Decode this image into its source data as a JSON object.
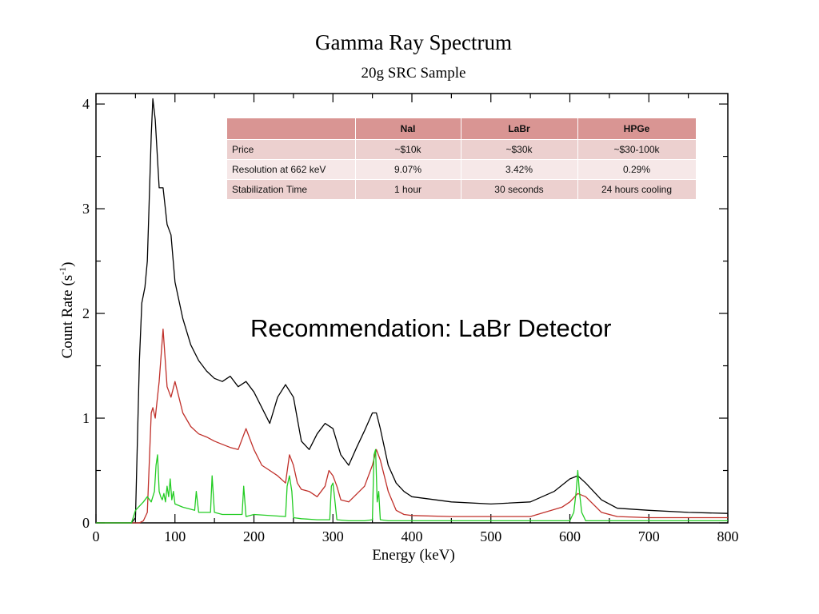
{
  "chart_data": {
    "type": "line",
    "title": "Gamma Ray Spectrum",
    "subtitle": "20g SRC Sample",
    "xlabel": "Energy (keV)",
    "ylabel_main": "Count Rate (s",
    "ylabel_sup": "-1",
    "ylabel_close": ")",
    "xlim": [
      0,
      800
    ],
    "ylim": [
      0,
      4.1
    ],
    "xticks": [
      0,
      100,
      200,
      300,
      400,
      500,
      600,
      700,
      800
    ],
    "xtick_labels": [
      "0",
      "100",
      "200",
      "300",
      "400",
      "500",
      "600",
      "700",
      "800"
    ],
    "yticks": [
      0,
      1,
      2,
      3,
      4
    ],
    "ytick_labels": [
      "0",
      "1",
      "2",
      "3",
      "4"
    ],
    "grid": false,
    "series": [
      {
        "color": "#000000",
        "x": [
          0,
          45,
          50,
          55,
          58,
          62,
          65,
          70,
          72,
          75,
          80,
          85,
          90,
          95,
          100,
          110,
          120,
          130,
          140,
          150,
          160,
          170,
          180,
          190,
          200,
          210,
          220,
          230,
          240,
          250,
          260,
          270,
          280,
          290,
          300,
          310,
          320,
          330,
          340,
          350,
          355,
          360,
          370,
          380,
          390,
          400,
          450,
          500,
          550,
          580,
          600,
          610,
          620,
          640,
          660,
          700,
          750,
          800
        ],
        "y": [
          0,
          0,
          0.05,
          1.55,
          2.1,
          2.25,
          2.5,
          3.7,
          4.05,
          3.85,
          3.2,
          3.2,
          2.85,
          2.75,
          2.3,
          1.95,
          1.7,
          1.55,
          1.45,
          1.38,
          1.35,
          1.4,
          1.3,
          1.35,
          1.25,
          1.1,
          0.95,
          1.2,
          1.32,
          1.2,
          0.78,
          0.7,
          0.85,
          0.95,
          0.9,
          0.65,
          0.55,
          0.72,
          0.88,
          1.05,
          1.05,
          0.9,
          0.55,
          0.38,
          0.3,
          0.25,
          0.2,
          0.18,
          0.2,
          0.3,
          0.42,
          0.45,
          0.38,
          0.22,
          0.14,
          0.12,
          0.1,
          0.09
        ]
      },
      {
        "color": "#c0302a",
        "x": [
          0,
          45,
          50,
          55,
          60,
          65,
          70,
          72,
          75,
          80,
          85,
          90,
          95,
          100,
          110,
          120,
          130,
          140,
          150,
          160,
          170,
          180,
          190,
          200,
          210,
          220,
          230,
          240,
          245,
          250,
          255,
          260,
          270,
          280,
          290,
          295,
          300,
          305,
          310,
          320,
          340,
          350,
          355,
          360,
          370,
          380,
          390,
          400,
          450,
          500,
          550,
          590,
          600,
          610,
          620,
          640,
          660,
          700,
          800
        ],
        "y": [
          0,
          0,
          0,
          0,
          0.02,
          0.1,
          1.05,
          1.1,
          1.0,
          1.35,
          1.85,
          1.3,
          1.2,
          1.35,
          1.05,
          0.92,
          0.85,
          0.82,
          0.78,
          0.75,
          0.72,
          0.7,
          0.9,
          0.7,
          0.55,
          0.5,
          0.45,
          0.38,
          0.65,
          0.55,
          0.38,
          0.32,
          0.3,
          0.25,
          0.35,
          0.5,
          0.45,
          0.35,
          0.22,
          0.2,
          0.35,
          0.55,
          0.7,
          0.6,
          0.3,
          0.12,
          0.08,
          0.07,
          0.06,
          0.06,
          0.06,
          0.15,
          0.2,
          0.28,
          0.25,
          0.1,
          0.06,
          0.05,
          0.05
        ]
      },
      {
        "color": "#22cc22",
        "x": [
          0,
          45,
          50,
          60,
          65,
          70,
          74,
          76,
          78,
          80,
          82,
          84,
          86,
          88,
          90,
          92,
          94,
          96,
          98,
          100,
          110,
          125,
          127,
          130,
          140,
          145,
          147,
          150,
          160,
          185,
          187,
          190,
          200,
          240,
          242,
          245,
          248,
          250,
          260,
          280,
          296,
          298,
          300,
          302,
          305,
          320,
          340,
          350,
          352,
          354,
          356,
          358,
          360,
          370,
          400,
          450,
          500,
          550,
          600,
          605,
          608,
          610,
          612,
          615,
          620,
          640,
          700,
          800
        ],
        "y": [
          0,
          0,
          0.12,
          0.2,
          0.25,
          0.2,
          0.3,
          0.55,
          0.65,
          0.3,
          0.25,
          0.22,
          0.28,
          0.2,
          0.35,
          0.25,
          0.42,
          0.22,
          0.3,
          0.18,
          0.15,
          0.12,
          0.3,
          0.1,
          0.1,
          0.1,
          0.45,
          0.1,
          0.08,
          0.08,
          0.35,
          0.06,
          0.08,
          0.06,
          0.35,
          0.45,
          0.3,
          0.05,
          0.04,
          0.03,
          0.03,
          0.35,
          0.38,
          0.25,
          0.03,
          0.02,
          0.02,
          0.03,
          0.65,
          0.7,
          0.2,
          0.3,
          0.03,
          0.02,
          0.02,
          0.02,
          0.02,
          0.02,
          0.02,
          0.1,
          0.3,
          0.5,
          0.3,
          0.1,
          0.02,
          0.02,
          0.02,
          0.02
        ]
      }
    ]
  },
  "table": {
    "headers": [
      "",
      "NaI",
      "LaBr",
      "HPGe"
    ],
    "rows": [
      [
        "Price",
        "~$10k",
        "~$30k",
        "~$30-100k"
      ],
      [
        "Resolution at 662 keV",
        "9.07%",
        "3.42%",
        "0.29%"
      ],
      [
        "Stabilization Time",
        "1 hour",
        "30 seconds",
        "24 hours cooling"
      ]
    ]
  },
  "recommendation": "Recommendation:  LaBr Detector"
}
